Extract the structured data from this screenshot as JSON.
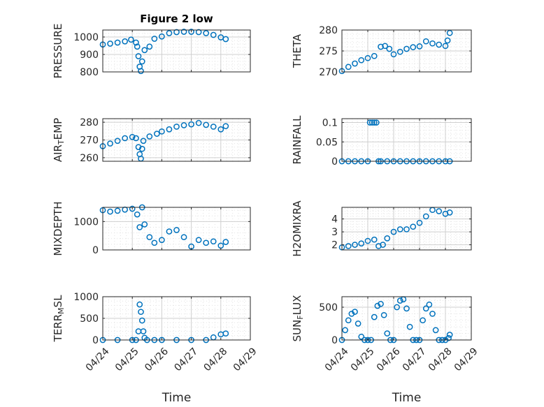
{
  "figure": {
    "title": "Figure 2 low",
    "marker_color": "#0072BD"
  },
  "chart_data": [
    {
      "type": "scatter",
      "name": "pressure",
      "title": "Figure 2 low",
      "ylabel": "PRESSURE",
      "xlabel": "",
      "xlim": [
        "04/24",
        "04/29"
      ],
      "ylim": [
        800,
        1040
      ],
      "yticks": [
        800,
        900,
        1000
      ],
      "xticklabels": [],
      "grid": true,
      "x": [
        "04/24 00:00",
        "04/24 06:00",
        "04/24 12:00",
        "04/24 18:00",
        "04/24 23:00",
        "04/25 03:00",
        "04/25 04:00",
        "04/25 05:00",
        "04/25 06:00",
        "04/25 07:00",
        "04/25 08:00",
        "04/25 10:00",
        "04/25 14:00",
        "04/25 18:00",
        "04/26 00:00",
        "04/26 06:00",
        "04/26 12:00",
        "04/26 18:00",
        "04/27 00:00",
        "04/27 06:00",
        "04/27 12:00",
        "04/27 18:00",
        "04/28 00:00",
        "04/28 04:00"
      ],
      "y": [
        957,
        962,
        968,
        975,
        985,
        968,
        945,
        890,
        830,
        805,
        860,
        925,
        945,
        990,
        1003,
        1022,
        1028,
        1030,
        1030,
        1028,
        1022,
        1012,
        998,
        988
      ]
    },
    {
      "type": "scatter",
      "name": "theta",
      "ylabel": "THETA",
      "xlabel": "",
      "xlim": [
        "04/24",
        "04/29"
      ],
      "ylim": [
        270,
        280
      ],
      "yticks": [
        270,
        275,
        280
      ],
      "xticklabels": [],
      "grid": true,
      "x": [
        "04/24 00:00",
        "04/24 06:00",
        "04/24 12:00",
        "04/24 18:00",
        "04/25 00:00",
        "04/25 06:00",
        "04/25 12:00",
        "04/25 16:00",
        "04/25 20:00",
        "04/26 00:00",
        "04/26 06:00",
        "04/26 12:00",
        "04/26 18:00",
        "04/27 00:00",
        "04/27 06:00",
        "04/27 12:00",
        "04/27 18:00",
        "04/28 00:00",
        "04/28 02:00",
        "04/28 04:00"
      ],
      "y": [
        270.2,
        271.2,
        272.0,
        272.8,
        273.3,
        273.8,
        276.0,
        276.2,
        275.5,
        274.2,
        274.8,
        275.5,
        275.9,
        276.1,
        277.3,
        276.8,
        276.5,
        276.2,
        277.5,
        279.3
      ]
    },
    {
      "type": "scatter",
      "name": "air_temp",
      "ylabel": "AIR_TEMP",
      "xlabel": "",
      "xlim": [
        "04/24",
        "04/29"
      ],
      "ylim": [
        258,
        282
      ],
      "yticks": [
        260,
        270,
        280
      ],
      "xticklabels": [],
      "grid": true,
      "x": [
        "04/24 00:00",
        "04/24 06:00",
        "04/24 12:00",
        "04/24 18:00",
        "04/25 00:00",
        "04/25 03:00",
        "04/25 05:00",
        "04/25 06:00",
        "04/25 07:00",
        "04/25 08:00",
        "04/25 09:00",
        "04/25 14:00",
        "04/25 20:00",
        "04/26 00:00",
        "04/26 06:00",
        "04/26 12:00",
        "04/26 18:00",
        "04/27 00:00",
        "04/27 06:00",
        "04/27 12:00",
        "04/27 18:00",
        "04/28 00:00",
        "04/28 04:00"
      ],
      "y": [
        266.5,
        268.0,
        269.5,
        271.0,
        271.7,
        271.0,
        266.0,
        262.0,
        259.5,
        265.0,
        269.5,
        272.0,
        273.5,
        274.8,
        276.0,
        277.5,
        278.3,
        278.8,
        279.6,
        278.5,
        277.5,
        276.0,
        277.8
      ]
    },
    {
      "type": "scatter",
      "name": "rainfall",
      "ylabel": "RAINFALL",
      "xlabel": "",
      "xlim": [
        "04/24",
        "04/29"
      ],
      "ylim": [
        0,
        0.11
      ],
      "yticks": [
        0,
        0.05,
        0.1
      ],
      "xticklabels": [],
      "grid": true,
      "x": [
        "04/24 00:00",
        "04/24 06:00",
        "04/24 12:00",
        "04/24 18:00",
        "04/25 00:00",
        "04/25 02:00",
        "04/25 04:00",
        "04/25 06:00",
        "04/25 08:00",
        "04/25 10:00",
        "04/25 12:00",
        "04/25 18:00",
        "04/26 00:00",
        "04/26 06:00",
        "04/26 12:00",
        "04/26 18:00",
        "04/27 00:00",
        "04/27 06:00",
        "04/27 12:00",
        "04/27 18:00",
        "04/28 00:00",
        "04/28 04:00"
      ],
      "y": [
        0,
        0,
        0,
        0,
        0,
        0.1,
        0.1,
        0.1,
        0.1,
        0,
        0,
        0,
        0,
        0,
        0,
        0,
        0,
        0,
        0,
        0,
        0,
        0
      ]
    },
    {
      "type": "scatter",
      "name": "mixdepth",
      "ylabel": "MIXDEPTH",
      "xlabel": "",
      "xlim": [
        "04/24",
        "04/29"
      ],
      "ylim": [
        0,
        1500
      ],
      "yticks": [
        0,
        1000
      ],
      "xticklabels": [],
      "grid": true,
      "x": [
        "04/24 00:00",
        "04/24 06:00",
        "04/24 12:00",
        "04/24 18:00",
        "04/25 00:00",
        "04/25 04:00",
        "04/25 06:00",
        "04/25 08:00",
        "04/25 10:00",
        "04/25 14:00",
        "04/25 18:00",
        "04/26 00:00",
        "04/26 06:00",
        "04/26 12:00",
        "04/26 18:00",
        "04/27 00:00",
        "04/27 06:00",
        "04/27 12:00",
        "04/27 18:00",
        "04/28 00:00",
        "04/28 04:00"
      ],
      "y": [
        1400,
        1350,
        1380,
        1420,
        1450,
        1250,
        800,
        1500,
        900,
        450,
        250,
        350,
        650,
        700,
        450,
        120,
        350,
        250,
        300,
        150,
        280
      ]
    },
    {
      "type": "scatter",
      "name": "h2omixra",
      "ylabel": "H2OMIXRA",
      "xlabel": "",
      "xlim": [
        "04/24",
        "04/29"
      ],
      "ylim": [
        1.6,
        4.9
      ],
      "yticks": [
        2,
        3,
        4
      ],
      "xticklabels": [],
      "grid": true,
      "x": [
        "04/24 00:00",
        "04/24 06:00",
        "04/24 12:00",
        "04/24 18:00",
        "04/25 00:00",
        "04/25 06:00",
        "04/25 10:00",
        "04/25 14:00",
        "04/25 18:00",
        "04/26 00:00",
        "04/26 06:00",
        "04/26 12:00",
        "04/26 18:00",
        "04/27 00:00",
        "04/27 06:00",
        "04/27 12:00",
        "04/27 18:00",
        "04/28 00:00",
        "04/28 04:00"
      ],
      "y": [
        1.8,
        1.9,
        2.0,
        2.1,
        2.3,
        2.4,
        1.9,
        2.0,
        2.5,
        3.0,
        3.2,
        3.2,
        3.4,
        3.7,
        4.2,
        4.7,
        4.6,
        4.4,
        4.5
      ]
    },
    {
      "type": "scatter",
      "name": "terr_msl",
      "ylabel": "TERR_MSL",
      "xlabel": "Time",
      "xlim": [
        "04/24",
        "04/29"
      ],
      "ylim": [
        0,
        1000
      ],
      "yticks": [
        0,
        500,
        1000
      ],
      "xticklabels": [
        "04/24",
        "04/25",
        "04/26",
        "04/27",
        "04/28",
        "04/29"
      ],
      "grid": true,
      "x": [
        "04/24 00:00",
        "04/24 12:00",
        "04/25 00:00",
        "04/25 03:00",
        "04/25 05:00",
        "04/25 06:00",
        "04/25 07:00",
        "04/25 08:00",
        "04/25 09:00",
        "04/25 10:00",
        "04/25 12:00",
        "04/25 18:00",
        "04/26 00:00",
        "04/26 12:00",
        "04/27 00:00",
        "04/27 12:00",
        "04/27 18:00",
        "04/28 00:00",
        "04/28 04:00"
      ],
      "y": [
        0,
        0,
        0,
        0,
        200,
        820,
        650,
        450,
        200,
        50,
        0,
        0,
        0,
        0,
        0,
        0,
        60,
        130,
        150
      ]
    },
    {
      "type": "scatter",
      "name": "sun_flux",
      "ylabel": "SUN_FLUX",
      "xlabel": "Time",
      "xlim": [
        "04/24",
        "04/29"
      ],
      "ylim": [
        0,
        660
      ],
      "yticks": [
        0,
        500
      ],
      "xticklabels": [
        "04/24",
        "04/25",
        "04/26",
        "04/27",
        "04/28",
        "04/29"
      ],
      "grid": true,
      "x": [
        "04/24 00:00",
        "04/24 03:00",
        "04/24 06:00",
        "04/24 09:00",
        "04/24 12:00",
        "04/24 15:00",
        "04/24 18:00",
        "04/24 21:00",
        "04/25 00:00",
        "04/25 03:00",
        "04/25 06:00",
        "04/25 09:00",
        "04/25 12:00",
        "04/25 15:00",
        "04/25 18:00",
        "04/25 21:00",
        "04/26 00:00",
        "04/26 03:00",
        "04/26 06:00",
        "04/26 09:00",
        "04/26 12:00",
        "04/26 15:00",
        "04/26 18:00",
        "04/26 21:00",
        "04/27 00:00",
        "04/27 03:00",
        "04/27 06:00",
        "04/27 09:00",
        "04/27 12:00",
        "04/27 15:00",
        "04/27 18:00",
        "04/27 21:00",
        "04/28 00:00",
        "04/28 03:00",
        "04/28 04:00"
      ],
      "y": [
        0,
        150,
        300,
        400,
        430,
        250,
        50,
        0,
        0,
        0,
        350,
        520,
        550,
        380,
        100,
        0,
        0,
        500,
        600,
        620,
        480,
        200,
        0,
        0,
        0,
        300,
        480,
        540,
        400,
        150,
        0,
        0,
        0,
        30,
        80
      ]
    }
  ]
}
